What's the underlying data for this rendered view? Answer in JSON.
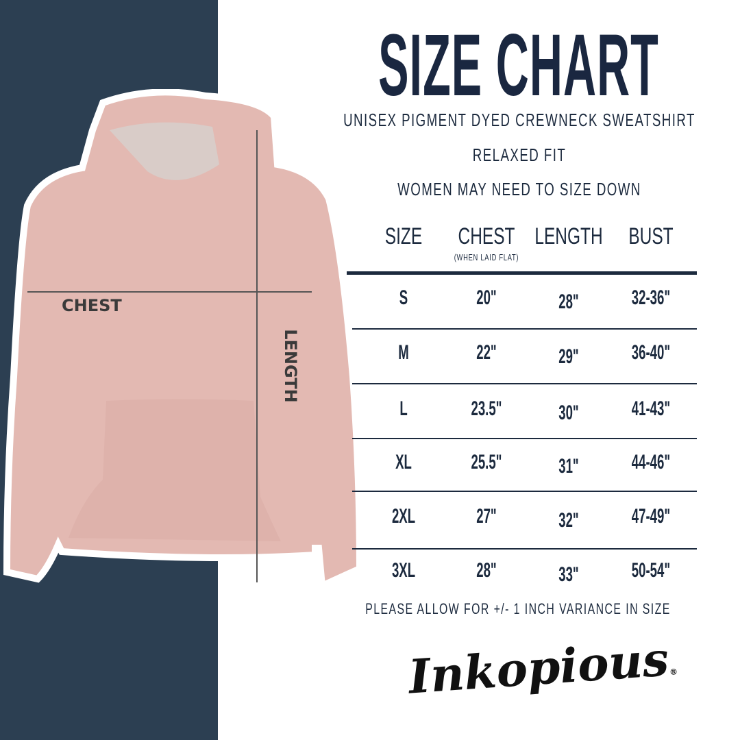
{
  "title": "SIZE CHART",
  "subtitles": [
    "UNISEX PIGMENT DYED CREWNECK SWEATSHIRT",
    "RELAXED FIT",
    "WOMEN MAY NEED TO SIZE DOWN"
  ],
  "table": {
    "headers": [
      "SIZE",
      "CHEST",
      "LENGTH",
      "BUST"
    ],
    "chest_note": "(WHEN LAID FLAT)",
    "rows": [
      [
        "S",
        "20\"",
        "28\"",
        "32-36\""
      ],
      [
        "M",
        "22\"",
        "29\"",
        "36-40\""
      ],
      [
        "L",
        "23.5\"",
        "30\"",
        "41-43\""
      ],
      [
        "XL",
        "25.5\"",
        "31\"",
        "44-46\""
      ],
      [
        "2XL",
        "27\"",
        "32\"",
        "47-49\""
      ],
      [
        "3XL",
        "28\"",
        "33\"",
        "50-54\""
      ]
    ]
  },
  "footnote": "PLEASE ALLOW FOR +/- 1 INCH VARIANCE IN SIZE",
  "image_labels": {
    "chest": "CHEST",
    "length": "LENGTH"
  },
  "brand": "Inkopious",
  "colors": {
    "navy": "#2c3f52",
    "text": "#1c2a3e",
    "garment": "#e3b9b2"
  }
}
